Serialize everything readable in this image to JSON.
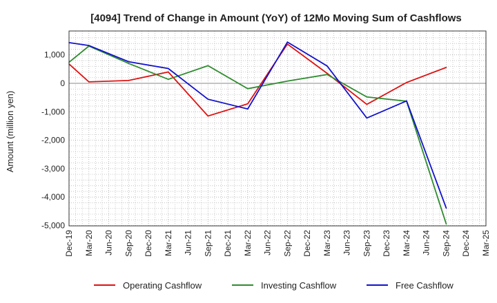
{
  "chart_data": {
    "type": "line",
    "title": "[4094]  Trend of Change in Amount (YoY) of 12Mo Moving Sum of Cashflows",
    "xlabel": "",
    "ylabel": "Amount (million yen)",
    "ylim": [
      -5000,
      1600
    ],
    "yticks": [
      1000,
      0,
      -1000,
      -2000,
      -3000,
      -4000,
      -5000
    ],
    "ytick_labels": [
      "1,000",
      "0",
      "-1,000",
      "-2,000",
      "-3,000",
      "-4,000",
      "-5,000"
    ],
    "categories": [
      "Dec-19",
      "Mar-20",
      "Jun-20",
      "Sep-20",
      "Dec-20",
      "Mar-21",
      "Jun-21",
      "Sep-21",
      "Dec-21",
      "Mar-22",
      "Jun-22",
      "Sep-22",
      "Dec-22",
      "Mar-23",
      "Jun-23",
      "Sep-23",
      "Dec-23",
      "Mar-24",
      "Jun-24",
      "Sep-24",
      "Dec-24",
      "Mar-25"
    ],
    "series": [
      {
        "name": "Operating Cashflow",
        "color": "#dd1111",
        "values": [
          680,
          50,
          null,
          100,
          null,
          400,
          null,
          -1150,
          null,
          -720,
          null,
          1380,
          null,
          350,
          null,
          -740,
          null,
          30,
          null,
          560,
          null,
          null
        ]
      },
      {
        "name": "Investing Cashflow",
        "color": "#2e8b2e",
        "values": [
          740,
          1310,
          null,
          700,
          null,
          140,
          null,
          620,
          null,
          -190,
          null,
          80,
          null,
          310,
          null,
          -480,
          null,
          -630,
          null,
          -4950,
          null,
          null
        ]
      },
      {
        "name": "Free Cashflow",
        "color": "#1111cc",
        "values": [
          1430,
          1330,
          null,
          760,
          null,
          520,
          null,
          -560,
          null,
          -900,
          null,
          1450,
          null,
          610,
          null,
          -1220,
          null,
          -620,
          null,
          -4390,
          null,
          null
        ]
      }
    ],
    "grid": true,
    "legend_position": "bottom"
  }
}
